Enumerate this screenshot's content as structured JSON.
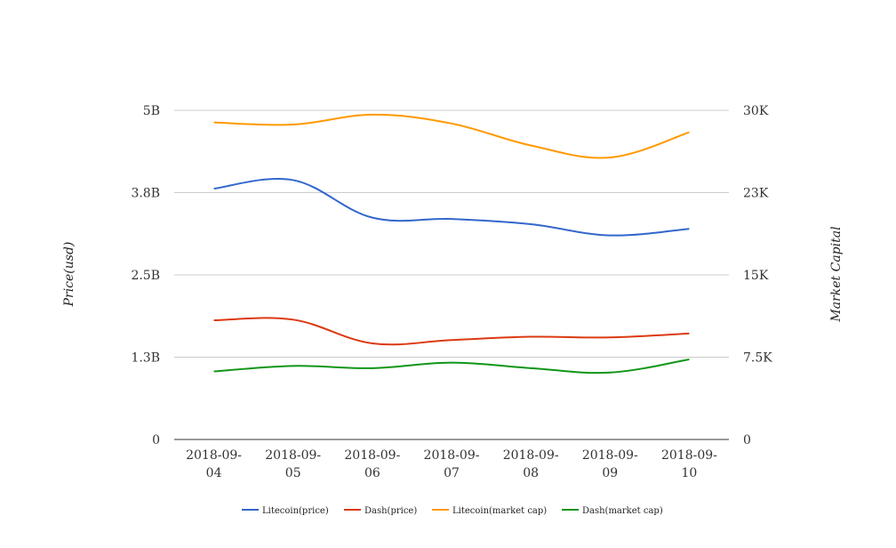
{
  "chart_data": {
    "type": "line",
    "title": "",
    "categories": [
      [
        "2018-09-",
        "04"
      ],
      [
        "2018-09-",
        "05"
      ],
      [
        "2018-09-",
        "06"
      ],
      [
        "2018-09-",
        "07"
      ],
      [
        "2018-09-",
        "08"
      ],
      [
        "2018-09-",
        "09"
      ],
      [
        "2018-09-",
        "10"
      ]
    ],
    "left_axis": {
      "label": "Price(usd)",
      "ticks": [
        "0",
        "1.3B",
        "2.5B",
        "3.8B",
        "5B"
      ],
      "ylim": [
        0,
        5000000000
      ]
    },
    "right_axis": {
      "label": "Market Capital",
      "ticks": [
        "0",
        "7.5K",
        "15K",
        "23K",
        "30K"
      ],
      "ylim": [
        0,
        30000
      ]
    },
    "grid": true,
    "legend_position": "bottom",
    "series": [
      {
        "name": "Litecoin(price)",
        "color": "#3366cc",
        "axis": "left",
        "values": [
          3810000000,
          3940000000,
          3370000000,
          3350000000,
          3270000000,
          3100000000,
          3200000000
        ]
      },
      {
        "name": "Dash(price)",
        "color": "#dc3912",
        "axis": "left",
        "values": [
          1810000000,
          1820000000,
          1460000000,
          1510000000,
          1560000000,
          1550000000,
          1610000000
        ]
      },
      {
        "name": "Litecoin(market cap)",
        "color": "#ff9900",
        "axis": "right",
        "values": [
          28900,
          28700,
          29600,
          28800,
          26800,
          25700,
          28000
        ]
      },
      {
        "name": "Dash(market cap)",
        "color": "#109618",
        "axis": "right",
        "values": [
          6200,
          6700,
          6500,
          7000,
          6500,
          6100,
          7300
        ]
      }
    ]
  }
}
